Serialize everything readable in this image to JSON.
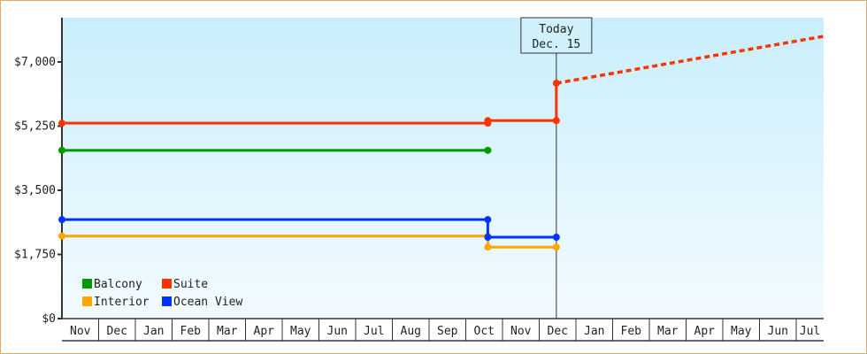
{
  "chart_data": {
    "type": "line",
    "title": "",
    "xlabel": "",
    "ylabel": "",
    "ylim": [
      0,
      8200
    ],
    "y_ticks": [
      "$0",
      "$1,750",
      "$3,500",
      "$5,250",
      "$7,000"
    ],
    "y_tick_values": [
      0,
      1750,
      3500,
      5250,
      7000
    ],
    "x_ticks": [
      "Nov",
      "Dec",
      "Jan",
      "Feb",
      "Mar",
      "Apr",
      "May",
      "Jun",
      "Jul",
      "Aug",
      "Sep",
      "Oct",
      "Nov",
      "Dec",
      "Jan",
      "Feb",
      "Mar",
      "Apr",
      "May",
      "Jun",
      "Jul"
    ],
    "grid": false,
    "legend_placement": "bottom-left",
    "background": {
      "top": "#c9eefc",
      "bottom": "#f3fbff"
    },
    "today_marker": {
      "line1": "Today",
      "line2": "Dec. 15",
      "date": "Dec 15"
    },
    "series": [
      {
        "name": "Balcony",
        "color": "#009900",
        "points": [
          {
            "x": "Nov 1",
            "y": 4590
          },
          {
            "x": "Oct 19",
            "y": 4590
          }
        ]
      },
      {
        "name": "Suite",
        "color": "#ff3300",
        "points": [
          {
            "x": "Nov 1",
            "y": 5330
          },
          {
            "x": "Oct 19",
            "y": 5330
          },
          {
            "x": "Oct 19",
            "y": 5400
          },
          {
            "x": "Dec 15",
            "y": 5400
          },
          {
            "x": "Dec 15",
            "y": 6420
          }
        ],
        "forecast": [
          {
            "x": "Dec 15",
            "y": 6420
          },
          {
            "x": "Jul 24",
            "y": 7700
          }
        ]
      },
      {
        "name": "Interior",
        "color": "#ffa500",
        "points": [
          {
            "x": "Nov 1",
            "y": 2250
          },
          {
            "x": "Oct 19",
            "y": 2250
          },
          {
            "x": "Oct 19",
            "y": 1950
          },
          {
            "x": "Dec 15",
            "y": 1950
          }
        ]
      },
      {
        "name": "Ocean View",
        "color": "#0033ff",
        "points": [
          {
            "x": "Nov 1",
            "y": 2700
          },
          {
            "x": "Oct 19",
            "y": 2700
          },
          {
            "x": "Oct 19",
            "y": 2220
          },
          {
            "x": "Dec 15",
            "y": 2220
          }
        ]
      }
    ]
  }
}
